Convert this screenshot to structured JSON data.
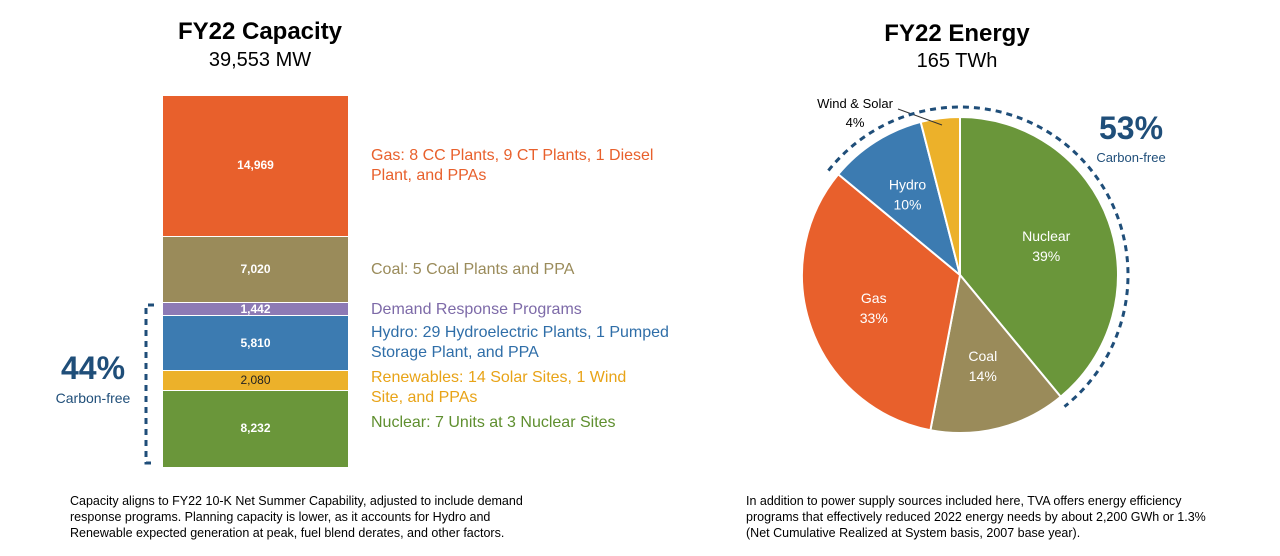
{
  "chart_data": [
    {
      "type": "bar",
      "title": "FY22 Capacity",
      "subtitle": "39,553 MW",
      "stacked": true,
      "unit": "MW",
      "segments": [
        {
          "name": "Gas",
          "value": 14969,
          "value_label": "14,969",
          "color": "#e8602c",
          "label": "Gas: 8 CC Plants, 9 CT Plants, 1 Diesel Plant, and PPAs",
          "label_color": "#e8602c"
        },
        {
          "name": "Coal",
          "value": 7020,
          "value_label": "7,020",
          "color": "#9a8b5a",
          "label": "Coal: 5 Coal Plants and PPA",
          "label_color": "#9a8b5a"
        },
        {
          "name": "Demand Response",
          "value": 1442,
          "value_label": "1,442",
          "color": "#8d7ab5",
          "label": "Demand Response Programs",
          "label_color": "#7d6aa8"
        },
        {
          "name": "Hydro",
          "value": 5810,
          "value_label": "5,810",
          "color": "#3c7bb1",
          "label": "Hydro: 29 Hydroelectric Plants, 1 Pumped Storage Plant, and PPA",
          "label_color": "#2f6ea8"
        },
        {
          "name": "Renewables",
          "value": 2080,
          "value_label": "2,080",
          "color": "#ecb12a",
          "label": "Renewables: 14 Solar Sites, 1 Wind Site, and PPAs",
          "label_color": "#e8a317"
        },
        {
          "name": "Nuclear",
          "value": 8232,
          "value_label": "8,232",
          "color": "#6a963a",
          "label": "Nuclear: 7 Units at 3 Nuclear Sites",
          "label_color": "#5f8f2f"
        }
      ],
      "carbon_free_pct": "44%",
      "carbon_free_label": "Carbon-free"
    },
    {
      "type": "pie",
      "title": "FY22 Energy",
      "subtitle": "165 TWh",
      "slices": [
        {
          "name": "Nuclear",
          "value": 39,
          "label": "Nuclear",
          "pct_label": "39%",
          "color": "#6a963a"
        },
        {
          "name": "Coal",
          "value": 14,
          "label": "Coal",
          "pct_label": "14%",
          "color": "#9a8b5a"
        },
        {
          "name": "Gas",
          "value": 33,
          "label": "Gas",
          "pct_label": "33%",
          "color": "#e8602c"
        },
        {
          "name": "Hydro",
          "value": 10,
          "label": "Hydro",
          "pct_label": "10%",
          "color": "#3c7bb1"
        },
        {
          "name": "Wind & Solar",
          "value": 4,
          "label": "Wind & Solar",
          "pct_label": "4%",
          "color": "#ecb12a"
        }
      ],
      "carbon_free_pct": "53%",
      "carbon_free_label": "Carbon-free"
    }
  ],
  "notes": {
    "capacity": [
      "Capacity aligns to FY22 10-K Net Summer Capability, adjusted to include demand",
      "response programs. Planning capacity is lower, as it accounts for Hydro and",
      "Renewable expected generation at peak, fuel blend derates, and other factors."
    ],
    "energy": [
      "In addition to power supply sources included here, TVA offers energy efficiency",
      "programs that effectively reduced 2022 energy needs by about 2,200 GWh or 1.3%",
      "(Net Cumulative Realized at System basis, 2007 base year)."
    ]
  }
}
